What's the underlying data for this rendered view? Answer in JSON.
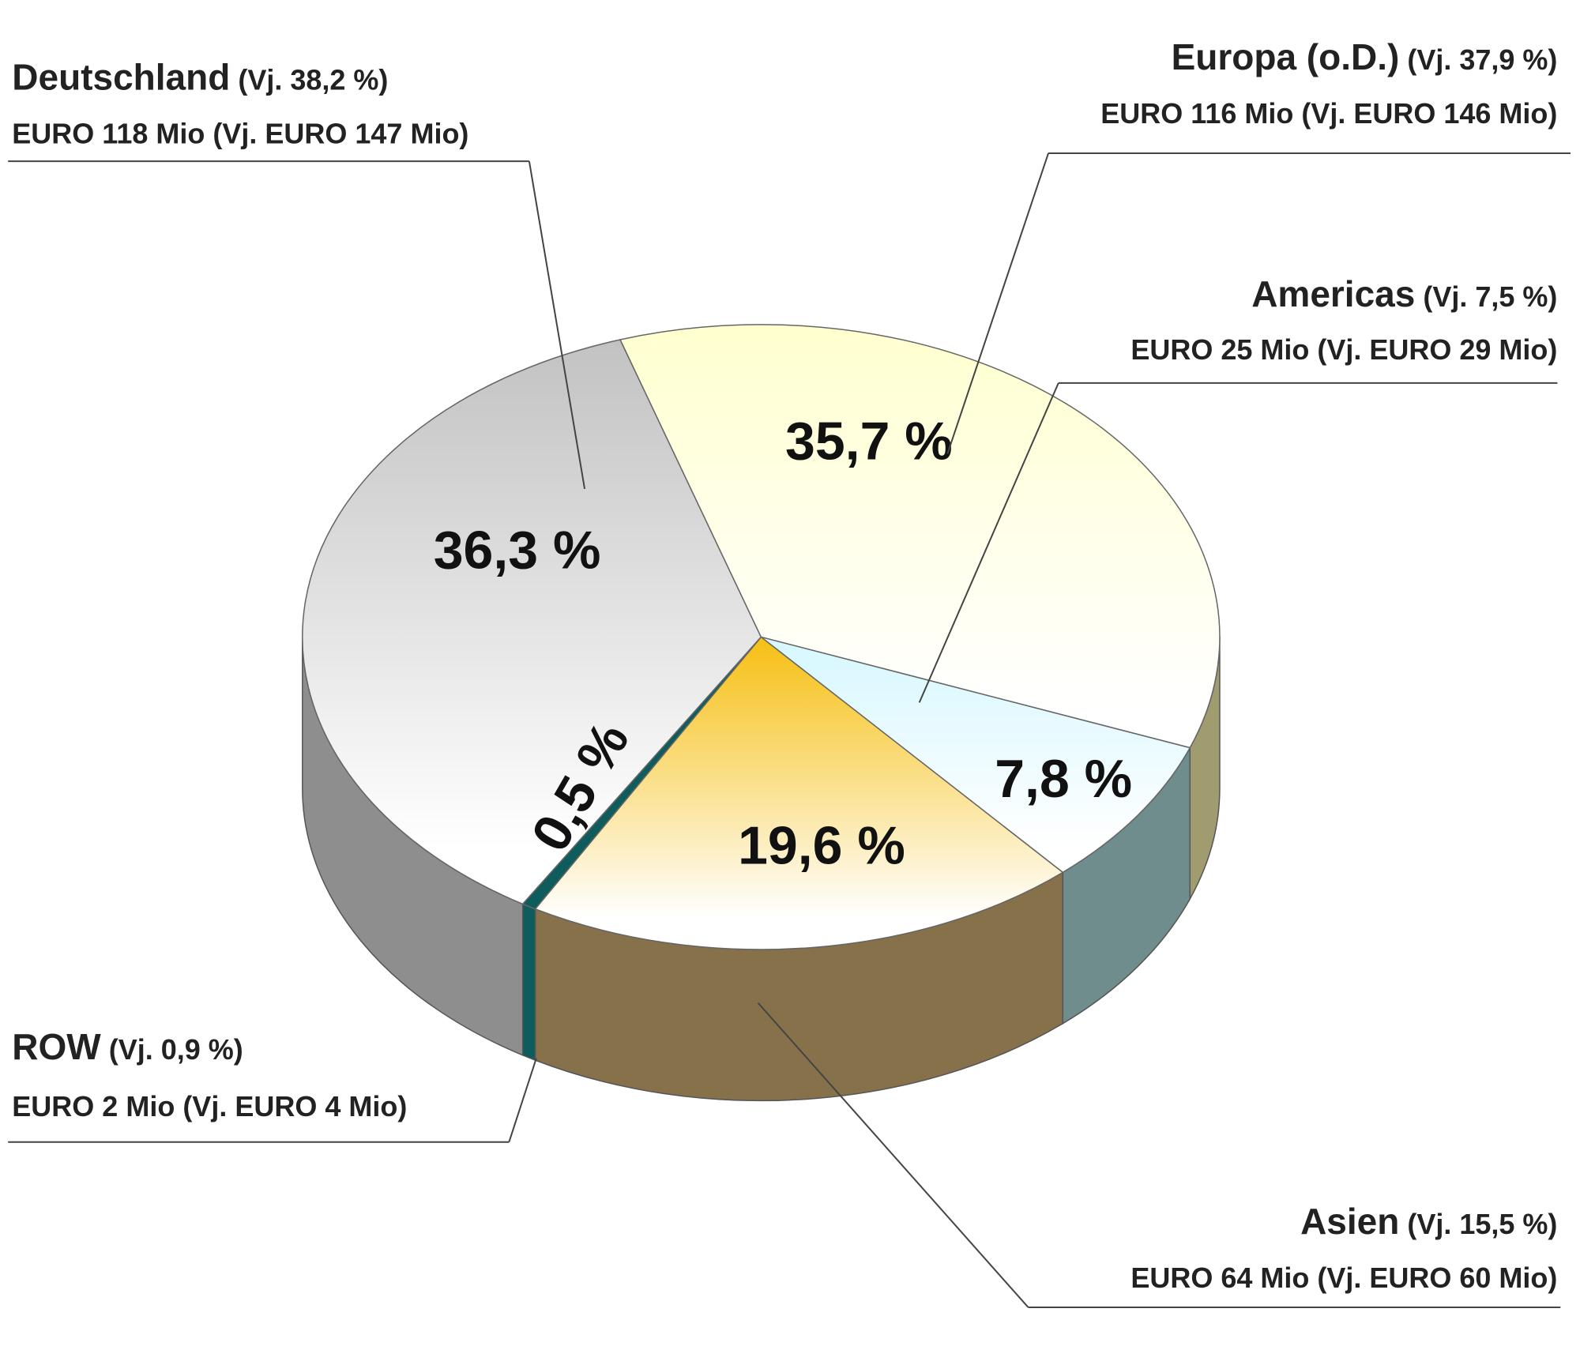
{
  "chart_data": {
    "type": "pie",
    "categories": [
      "Deutschland",
      "Europa (o.D.)",
      "Americas",
      "Asien",
      "ROW"
    ],
    "values": [
      36.3,
      35.7,
      7.8,
      19.6,
      0.5
    ],
    "value_labels": [
      "36,3 %",
      "35,7 %",
      "7,8 %",
      "19,6 %",
      "0,5 %"
    ],
    "details": [
      {
        "previous": "(Vj. 38,2 %)",
        "amount": "EURO 118 Mio (Vj. EURO 147 Mio)"
      },
      {
        "previous": "(Vj. 37,9 %)",
        "amount": "EURO 116 Mio (Vj. EURO 146 Mio)"
      },
      {
        "previous": "(Vj. 7,5 %)",
        "amount": "EURO 25 Mio (Vj. EURO 29 Mio)"
      },
      {
        "previous": "(Vj. 15,5 %)",
        "amount": "EURO 64 Mio  (Vj. EURO 60 Mio)"
      },
      {
        "previous": "(Vj. 0,9 %)",
        "amount": "EURO 2 Mio  (Vj. EURO 4 Mio)"
      }
    ],
    "colors": [
      "#c2c2c2",
      "#ffffcf",
      "#d6f7ff",
      "#f6bf12",
      "#0e5c5c"
    ],
    "side_colors": [
      "#8e8e8e",
      "#a09c70",
      "#6f8d8d",
      "#86714a",
      "#0e5c5c"
    ]
  }
}
